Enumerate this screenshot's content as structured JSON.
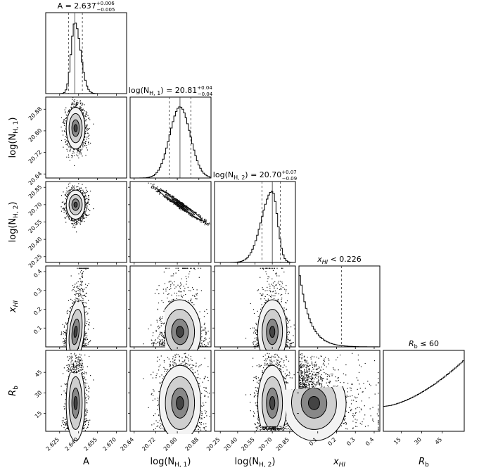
{
  "chart_data": {
    "type": "corner",
    "parameters": [
      {
        "key": "A",
        "label": "A",
        "ticks": [
          2.625,
          2.64,
          2.655,
          2.67
        ],
        "tick_labels": [
          "2.625",
          "2.640",
          "2.655",
          "2.670"
        ],
        "range": [
          2.614,
          2.678
        ]
      },
      {
        "key": "logNH1",
        "label": "log(N_H,1)",
        "ticks": [
          20.64,
          20.72,
          20.8,
          20.88
        ],
        "tick_labels": [
          "20.64",
          "20.72",
          "20.80",
          "20.88"
        ],
        "range": [
          20.625,
          20.925
        ]
      },
      {
        "key": "logNH2",
        "label": "log(N_H,2)",
        "ticks": [
          20.25,
          20.4,
          20.55,
          20.7,
          20.85
        ],
        "tick_labels": [
          "20.25",
          "20.40",
          "20.55",
          "20.70",
          "20.85"
        ],
        "range": [
          20.2,
          20.9
        ]
      },
      {
        "key": "xHI",
        "label": "x_HI",
        "ticks": [
          0.1,
          0.2,
          0.3,
          0.4
        ],
        "tick_labels": [
          "0.1",
          "0.2",
          "0.3",
          "0.4"
        ],
        "range": [
          0.0,
          0.43
        ]
      },
      {
        "key": "Rb",
        "label": "R_b",
        "ticks": [
          15,
          30,
          45
        ],
        "tick_labels": [
          "15",
          "30",
          "45"
        ],
        "range": [
          2,
          61
        ]
      }
    ],
    "axis_labels_x": [
      "A",
      "log(N",
      "log(N",
      "x",
      "R"
    ],
    "axis_label_subscripts_x": [
      "",
      "H, 1",
      "H, 2",
      "HI",
      "b"
    ],
    "axis_labels_y": [
      "log(N",
      "log(N",
      "x",
      "R"
    ],
    "axis_label_subscripts_y": [
      "H, 1",
      "H, 2",
      "HI",
      "b"
    ],
    "diagonal_titles": [
      {
        "param": "A",
        "text": "A = 2.637",
        "sup": "+0.006",
        "sub": "−0.005"
      },
      {
        "param": "logNH1",
        "text": "log(N",
        "sub_label": "H, 1",
        "tail": ") = 20.81",
        "sup": "+0.04",
        "sub": "−0.04"
      },
      {
        "param": "logNH2",
        "text": "log(N",
        "sub_label": "H, 2",
        "tail": ") = 20.70",
        "sup": "+0.07",
        "sub": "−0.09"
      },
      {
        "param": "xHI",
        "text": "x",
        "sub_label": "HI",
        "tail": " < 0.226"
      },
      {
        "param": "Rb",
        "text": "R",
        "sub_label": "b",
        "tail": " ≤ 60"
      }
    ],
    "marginals": [
      {
        "param": "A",
        "median": 2.637,
        "lower": 2.632,
        "upper": 2.643,
        "sigma": 0.0035,
        "skew": 0.6
      },
      {
        "param": "logNH1",
        "median": 20.81,
        "lower": 20.77,
        "upper": 20.85,
        "sigma": 0.038
      },
      {
        "param": "logNH2",
        "median": 20.7,
        "lower": 20.61,
        "upper": 20.77,
        "sigma": 0.075,
        "skew": -0.8
      },
      {
        "param": "xHI",
        "upper_limit": 0.226,
        "decay": 0.055
      },
      {
        "param": "Rb",
        "upper_limit": 60,
        "rising": true
      }
    ],
    "grid": false
  }
}
